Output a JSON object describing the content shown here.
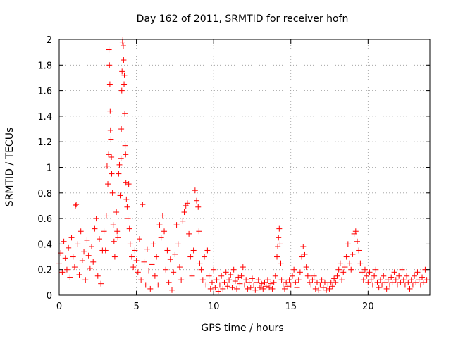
{
  "chart_data": {
    "type": "scatter",
    "title": "Day 162 of 2011, SRMTID for receiver hofn",
    "xlabel": "GPS time / hours",
    "ylabel": "SRMTID / TECUs",
    "xlim": [
      0,
      24
    ],
    "ylim": [
      0,
      2
    ],
    "xticks": [
      0,
      5,
      10,
      15,
      20
    ],
    "yticks": [
      0,
      0.2,
      0.4,
      0.6,
      0.8,
      1,
      1.2,
      1.4,
      1.6,
      1.8,
      2
    ],
    "xtick_labels": [
      "0",
      "5",
      "10",
      "15",
      "20"
    ],
    "ytick_labels": [
      "0",
      "0.2",
      "0.4",
      "0.6",
      "0.8",
      "1",
      "1.2",
      "1.4",
      "1.6",
      "1.8",
      "2"
    ],
    "grid": true,
    "legend": false,
    "marker": "+",
    "marker_color": "#ff0000",
    "series": [
      {
        "points": [
          [
            0.0,
            0.25
          ],
          [
            0.1,
            0.33
          ],
          [
            0.2,
            0.18
          ],
          [
            0.3,
            0.42
          ],
          [
            0.4,
            0.29
          ],
          [
            0.5,
            0.2
          ],
          [
            0.6,
            0.37
          ],
          [
            0.7,
            0.14
          ],
          [
            0.8,
            0.45
          ],
          [
            0.9,
            0.3
          ],
          [
            1.0,
            0.22
          ],
          [
            1.05,
            0.7
          ],
          [
            1.1,
            0.71
          ],
          [
            1.2,
            0.4
          ],
          [
            1.3,
            0.16
          ],
          [
            1.4,
            0.5
          ],
          [
            1.5,
            0.27
          ],
          [
            1.6,
            0.34
          ],
          [
            1.7,
            0.12
          ],
          [
            1.8,
            0.43
          ],
          [
            1.9,
            0.31
          ],
          [
            2.0,
            0.21
          ],
          [
            2.1,
            0.38
          ],
          [
            2.2,
            0.26
          ],
          [
            2.3,
            0.52
          ],
          [
            2.4,
            0.6
          ],
          [
            2.5,
            0.15
          ],
          [
            2.6,
            0.44
          ],
          [
            2.7,
            0.09
          ],
          [
            2.8,
            0.35
          ],
          [
            2.9,
            0.5
          ],
          [
            3.0,
            0.35
          ],
          [
            3.05,
            0.62
          ],
          [
            3.1,
            1.01
          ],
          [
            3.15,
            0.87
          ],
          [
            3.2,
            1.1
          ],
          [
            3.22,
            1.92
          ],
          [
            3.25,
            1.8
          ],
          [
            3.28,
            1.65
          ],
          [
            3.3,
            1.44
          ],
          [
            3.32,
            1.29
          ],
          [
            3.35,
            1.22
          ],
          [
            3.38,
            1.08
          ],
          [
            3.4,
            0.95
          ],
          [
            3.45,
            0.8
          ],
          [
            3.5,
            0.55
          ],
          [
            3.55,
            0.42
          ],
          [
            3.6,
            0.3
          ],
          [
            3.7,
            0.65
          ],
          [
            3.75,
            0.5
          ],
          [
            3.8,
            0.45
          ],
          [
            3.85,
            0.95
          ],
          [
            3.9,
            1.02
          ],
          [
            3.95,
            0.78
          ],
          [
            4.0,
            1.07
          ],
          [
            4.02,
            1.3
          ],
          [
            4.05,
            1.6
          ],
          [
            4.07,
            1.75
          ],
          [
            4.1,
            1.98
          ],
          [
            4.12,
            2.0
          ],
          [
            4.15,
            1.95
          ],
          [
            4.17,
            1.84
          ],
          [
            4.2,
            1.65
          ],
          [
            4.22,
            1.72
          ],
          [
            4.25,
            1.42
          ],
          [
            4.27,
            1.17
          ],
          [
            4.3,
            1.1
          ],
          [
            4.32,
            0.88
          ],
          [
            4.35,
            0.75
          ],
          [
            4.4,
            0.69
          ],
          [
            4.45,
            0.6
          ],
          [
            4.5,
            0.87
          ],
          [
            4.55,
            0.52
          ],
          [
            4.6,
            0.4
          ],
          [
            4.7,
            0.3
          ],
          [
            4.8,
            0.22
          ],
          [
            4.9,
            0.35
          ],
          [
            5.0,
            0.27
          ],
          [
            5.1,
            0.18
          ],
          [
            5.2,
            0.44
          ],
          [
            5.3,
            0.12
          ],
          [
            5.4,
            0.71
          ],
          [
            5.5,
            0.26
          ],
          [
            5.6,
            0.08
          ],
          [
            5.7,
            0.36
          ],
          [
            5.8,
            0.19
          ],
          [
            5.9,
            0.05
          ],
          [
            6.0,
            0.24
          ],
          [
            6.1,
            0.4
          ],
          [
            6.2,
            0.15
          ],
          [
            6.3,
            0.3
          ],
          [
            6.4,
            0.08
          ],
          [
            6.5,
            0.55
          ],
          [
            6.6,
            0.45
          ],
          [
            6.7,
            0.62
          ],
          [
            6.8,
            0.5
          ],
          [
            6.9,
            0.2
          ],
          [
            7.0,
            0.35
          ],
          [
            7.1,
            0.1
          ],
          [
            7.2,
            0.28
          ],
          [
            7.3,
            0.04
          ],
          [
            7.4,
            0.18
          ],
          [
            7.5,
            0.32
          ],
          [
            7.6,
            0.55
          ],
          [
            7.7,
            0.4
          ],
          [
            7.8,
            0.22
          ],
          [
            7.9,
            0.12
          ],
          [
            8.0,
            0.58
          ],
          [
            8.1,
            0.65
          ],
          [
            8.2,
            0.7
          ],
          [
            8.3,
            0.72
          ],
          [
            8.4,
            0.48
          ],
          [
            8.5,
            0.3
          ],
          [
            8.6,
            0.15
          ],
          [
            8.7,
            0.35
          ],
          [
            8.8,
            0.82
          ],
          [
            8.9,
            0.74
          ],
          [
            9.0,
            0.69
          ],
          [
            9.05,
            0.5
          ],
          [
            9.1,
            0.25
          ],
          [
            9.2,
            0.2
          ],
          [
            9.3,
            0.12
          ],
          [
            9.4,
            0.3
          ],
          [
            9.5,
            0.08
          ],
          [
            9.6,
            0.35
          ],
          [
            9.7,
            0.15
          ],
          [
            9.8,
            0.05
          ],
          [
            9.9,
            0.1
          ],
          [
            10.0,
            0.2
          ],
          [
            10.1,
            0.06
          ],
          [
            10.2,
            0.12
          ],
          [
            10.3,
            0.03
          ],
          [
            10.4,
            0.08
          ],
          [
            10.5,
            0.15
          ],
          [
            10.6,
            0.05
          ],
          [
            10.7,
            0.1
          ],
          [
            10.8,
            0.18
          ],
          [
            10.9,
            0.07
          ],
          [
            11.0,
            0.12
          ],
          [
            11.1,
            0.16
          ],
          [
            11.2,
            0.06
          ],
          [
            11.3,
            0.2
          ],
          [
            11.4,
            0.11
          ],
          [
            11.5,
            0.05
          ],
          [
            11.6,
            0.14
          ],
          [
            11.7,
            0.09
          ],
          [
            11.8,
            0.15
          ],
          [
            11.9,
            0.22
          ],
          [
            12.0,
            0.08
          ],
          [
            12.1,
            0.12
          ],
          [
            12.2,
            0.05
          ],
          [
            12.3,
            0.1
          ],
          [
            12.4,
            0.06
          ],
          [
            12.5,
            0.13
          ],
          [
            12.6,
            0.08
          ],
          [
            12.7,
            0.04
          ],
          [
            12.8,
            0.1
          ],
          [
            12.9,
            0.12
          ],
          [
            13.0,
            0.06
          ],
          [
            13.1,
            0.09
          ],
          [
            13.2,
            0.05
          ],
          [
            13.3,
            0.1
          ],
          [
            13.4,
            0.07
          ],
          [
            13.5,
            0.12
          ],
          [
            13.6,
            0.06
          ],
          [
            13.7,
            0.09
          ],
          [
            13.8,
            0.05
          ],
          [
            13.9,
            0.1
          ],
          [
            14.0,
            0.15
          ],
          [
            14.1,
            0.3
          ],
          [
            14.15,
            0.38
          ],
          [
            14.2,
            0.45
          ],
          [
            14.25,
            0.52
          ],
          [
            14.3,
            0.4
          ],
          [
            14.35,
            0.25
          ],
          [
            14.4,
            0.12
          ],
          [
            14.5,
            0.08
          ],
          [
            14.6,
            0.05
          ],
          [
            14.7,
            0.1
          ],
          [
            14.8,
            0.07
          ],
          [
            14.9,
            0.12
          ],
          [
            15.0,
            0.08
          ],
          [
            15.1,
            0.15
          ],
          [
            15.2,
            0.2
          ],
          [
            15.3,
            0.1
          ],
          [
            15.4,
            0.06
          ],
          [
            15.5,
            0.12
          ],
          [
            15.6,
            0.18
          ],
          [
            15.7,
            0.3
          ],
          [
            15.8,
            0.38
          ],
          [
            15.9,
            0.32
          ],
          [
            16.0,
            0.22
          ],
          [
            16.1,
            0.15
          ],
          [
            16.2,
            0.1
          ],
          [
            16.3,
            0.08
          ],
          [
            16.4,
            0.12
          ],
          [
            16.5,
            0.15
          ],
          [
            16.6,
            0.05
          ],
          [
            16.7,
            0.1
          ],
          [
            16.8,
            0.04
          ],
          [
            16.9,
            0.08
          ],
          [
            17.0,
            0.12
          ],
          [
            17.1,
            0.06
          ],
          [
            17.2,
            0.1
          ],
          [
            17.3,
            0.04
          ],
          [
            17.4,
            0.08
          ],
          [
            17.5,
            0.05
          ],
          [
            17.6,
            0.1
          ],
          [
            17.7,
            0.07
          ],
          [
            17.8,
            0.13
          ],
          [
            17.9,
            0.1
          ],
          [
            18.0,
            0.15
          ],
          [
            18.1,
            0.2
          ],
          [
            18.2,
            0.25
          ],
          [
            18.3,
            0.12
          ],
          [
            18.4,
            0.18
          ],
          [
            18.5,
            0.22
          ],
          [
            18.6,
            0.3
          ],
          [
            18.7,
            0.4
          ],
          [
            18.8,
            0.25
          ],
          [
            18.9,
            0.2
          ],
          [
            19.0,
            0.32
          ],
          [
            19.1,
            0.48
          ],
          [
            19.2,
            0.5
          ],
          [
            19.3,
            0.42
          ],
          [
            19.4,
            0.35
          ],
          [
            19.5,
            0.25
          ],
          [
            19.6,
            0.18
          ],
          [
            19.7,
            0.12
          ],
          [
            19.8,
            0.2
          ],
          [
            19.9,
            0.15
          ],
          [
            20.0,
            0.1
          ],
          [
            20.1,
            0.18
          ],
          [
            20.2,
            0.12
          ],
          [
            20.3,
            0.08
          ],
          [
            20.4,
            0.15
          ],
          [
            20.5,
            0.2
          ],
          [
            20.6,
            0.1
          ],
          [
            20.7,
            0.06
          ],
          [
            20.8,
            0.12
          ],
          [
            20.9,
            0.08
          ],
          [
            21.0,
            0.15
          ],
          [
            21.1,
            0.1
          ],
          [
            21.2,
            0.05
          ],
          [
            21.3,
            0.12
          ],
          [
            21.4,
            0.08
          ],
          [
            21.5,
            0.14
          ],
          [
            21.6,
            0.1
          ],
          [
            21.7,
            0.18
          ],
          [
            21.8,
            0.12
          ],
          [
            21.9,
            0.08
          ],
          [
            22.0,
            0.15
          ],
          [
            22.1,
            0.1
          ],
          [
            22.2,
            0.2
          ],
          [
            22.3,
            0.12
          ],
          [
            22.4,
            0.08
          ],
          [
            22.5,
            0.15
          ],
          [
            22.6,
            0.1
          ],
          [
            22.7,
            0.05
          ],
          [
            22.8,
            0.12
          ],
          [
            22.9,
            0.08
          ],
          [
            23.0,
            0.15
          ],
          [
            23.1,
            0.1
          ],
          [
            23.2,
            0.18
          ],
          [
            23.3,
            0.12
          ],
          [
            23.4,
            0.08
          ],
          [
            23.5,
            0.14
          ],
          [
            23.6,
            0.1
          ],
          [
            23.7,
            0.2
          ],
          [
            23.8,
            0.12
          ]
        ]
      }
    ]
  }
}
